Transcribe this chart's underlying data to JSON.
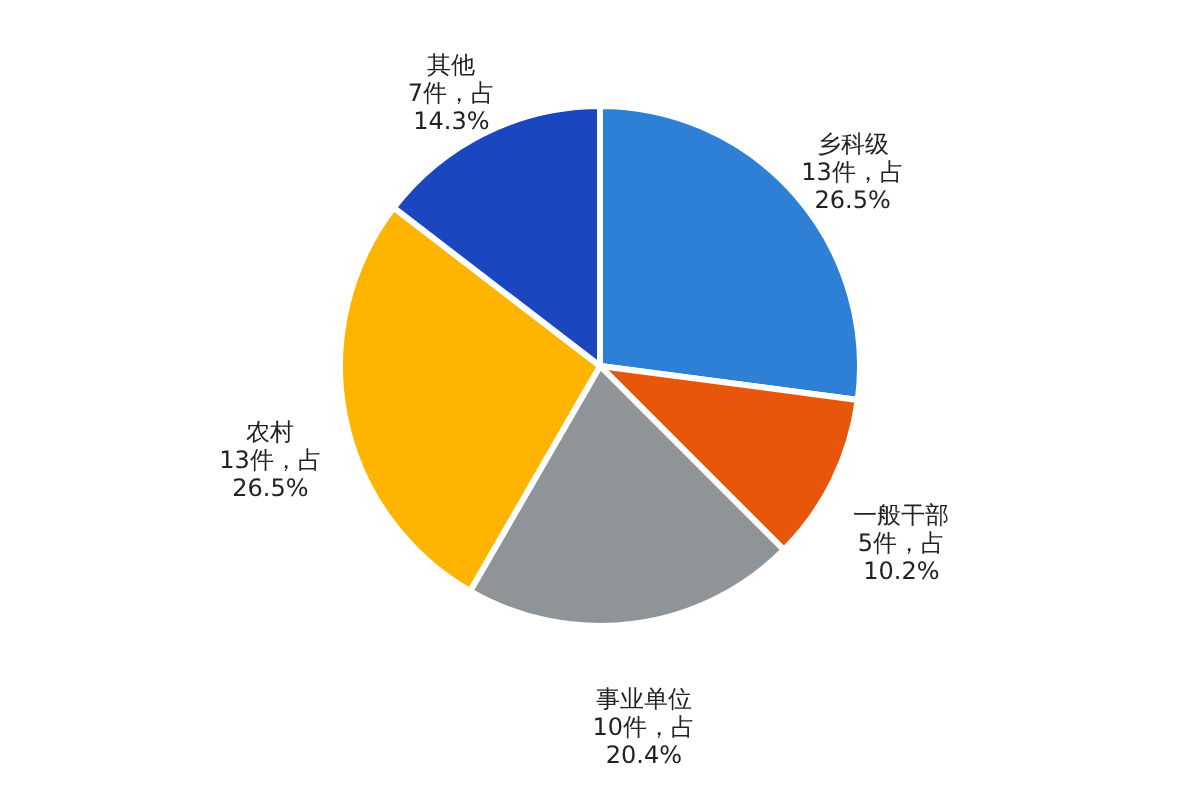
{
  "chart_data": {
    "type": "pie",
    "categories": [
      "乡科级",
      "一般干部",
      "事业单位",
      "农村",
      "其他"
    ],
    "values": [
      13,
      5,
      10,
      13,
      7
    ],
    "colors": [
      "#2e7fd6",
      "#e8560c",
      "#8f9499",
      "#ffb400",
      "#1a47c0"
    ],
    "value_labels": [
      "13件，占 26.5%",
      "5件，占 10.2%",
      "10件，占 20.4%",
      "13件，占 26.5%",
      "7件，占 14.3%"
    ]
  }
}
